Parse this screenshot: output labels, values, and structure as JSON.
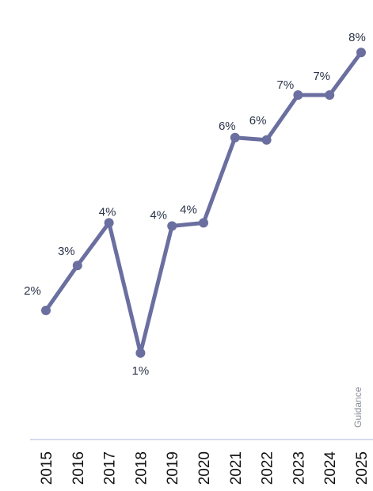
{
  "chart_data": {
    "type": "line",
    "categories": [
      "2015",
      "2016",
      "2017",
      "2018",
      "2019",
      "2020",
      "2021",
      "2022",
      "2023",
      "2024",
      "2025"
    ],
    "series": [
      {
        "values": [
          2,
          3,
          4,
          1,
          4,
          4,
          6,
          6,
          7,
          7,
          8
        ]
      }
    ],
    "data_labels": [
      "2%",
      "3%",
      "4%",
      "1%",
      "4%",
      "4%",
      "6%",
      "6%",
      "7%",
      "7%",
      "8%"
    ],
    "annotation": "Guidance",
    "title": "",
    "xlabel": "",
    "ylabel": "",
    "grid": false,
    "colors": {
      "line": "#6a6fa0",
      "axis": "#c5cdea",
      "label": "#2b3348"
    }
  }
}
